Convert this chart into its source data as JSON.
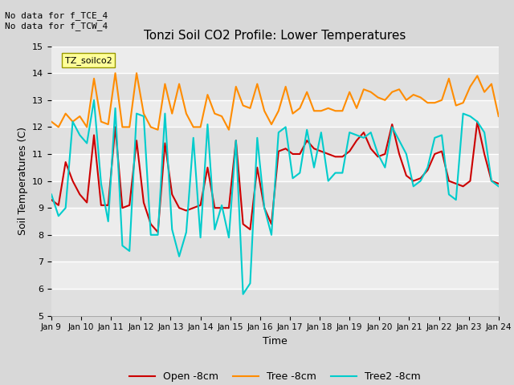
{
  "title": "Tonzi Soil CO2 Profile: Lower Temperatures",
  "xlabel": "Time",
  "ylabel": "Soil Temperatures (C)",
  "ylim": [
    5.0,
    15.0
  ],
  "yticks": [
    5.0,
    6.0,
    7.0,
    8.0,
    9.0,
    10.0,
    11.0,
    12.0,
    13.0,
    14.0,
    15.0
  ],
  "bg_color": "#d8d8d8",
  "plot_bg_color": "#e8e8e8",
  "grid_color": "#ffffff",
  "annotation_text": "No data for f_TCE_4\nNo data for f_TCW_4",
  "legend_box_text": "TZ_soilco2",
  "legend_box_color": "#ffff99",
  "legend_box_edge": "#999900",
  "line_open_color": "#cc0000",
  "line_tree_color": "#ff8c00",
  "line_tree2_color": "#00cccc",
  "line_width": 1.5,
  "x_tick_labels": [
    "Jan 9",
    "Jan 10",
    "Jan 11",
    "Jan 12",
    "Jan 13",
    "Jan 14",
    "Jan 15",
    "Jan 16",
    "Jan 17",
    "Jan 18",
    "Jan 19",
    "Jan 20",
    "Jan 21",
    "Jan 22",
    "Jan 23",
    "Jan 24"
  ],
  "open_8cm": [
    9.3,
    9.1,
    10.7,
    10.0,
    9.5,
    9.2,
    11.7,
    9.1,
    9.1,
    12.0,
    9.0,
    9.1,
    11.5,
    9.2,
    8.4,
    8.1,
    11.4,
    9.5,
    9.0,
    8.9,
    9.0,
    9.1,
    10.5,
    9.0,
    9.0,
    9.0,
    11.5,
    8.4,
    8.2,
    10.5,
    9.0,
    8.4,
    11.1,
    11.2,
    11.0,
    11.0,
    11.5,
    11.2,
    11.1,
    11.0,
    10.9,
    10.9,
    11.1,
    11.5,
    11.8,
    11.2,
    10.9,
    11.0,
    12.1,
    11.0,
    10.2,
    10.0,
    10.1,
    10.4,
    11.0,
    11.1,
    10.0,
    9.9,
    9.8,
    10.0,
    12.2,
    11.0,
    10.0,
    9.9
  ],
  "tree_8cm": [
    12.2,
    12.0,
    12.5,
    12.2,
    12.4,
    12.0,
    13.8,
    12.2,
    12.1,
    14.0,
    12.0,
    12.0,
    14.0,
    12.5,
    12.0,
    11.9,
    13.6,
    12.5,
    13.6,
    12.5,
    12.0,
    12.0,
    13.2,
    12.5,
    12.4,
    11.9,
    13.5,
    12.8,
    12.7,
    13.6,
    12.6,
    12.1,
    12.6,
    13.5,
    12.5,
    12.7,
    13.3,
    12.6,
    12.6,
    12.7,
    12.6,
    12.6,
    13.3,
    12.7,
    13.4,
    13.3,
    13.1,
    13.0,
    13.3,
    13.4,
    13.0,
    13.2,
    13.1,
    12.9,
    12.9,
    13.0,
    13.8,
    12.8,
    12.9,
    13.5,
    13.9,
    13.3,
    13.6,
    12.4
  ],
  "tree2_8cm": [
    9.5,
    8.7,
    9.0,
    12.2,
    11.7,
    11.4,
    13.0,
    9.9,
    8.5,
    12.7,
    7.6,
    7.4,
    12.5,
    12.4,
    8.0,
    8.0,
    12.5,
    8.2,
    7.2,
    8.1,
    11.6,
    7.9,
    12.1,
    8.2,
    9.1,
    7.9,
    11.5,
    5.8,
    6.2,
    11.6,
    9.0,
    8.0,
    11.8,
    12.0,
    10.1,
    10.3,
    11.9,
    10.5,
    11.8,
    10.0,
    10.3,
    10.3,
    11.8,
    11.7,
    11.6,
    11.8,
    11.0,
    10.5,
    12.0,
    11.5,
    11.0,
    9.8,
    10.0,
    10.5,
    11.6,
    11.7,
    9.5,
    9.3,
    12.5,
    12.4,
    12.2,
    11.8,
    10.0,
    9.8
  ]
}
